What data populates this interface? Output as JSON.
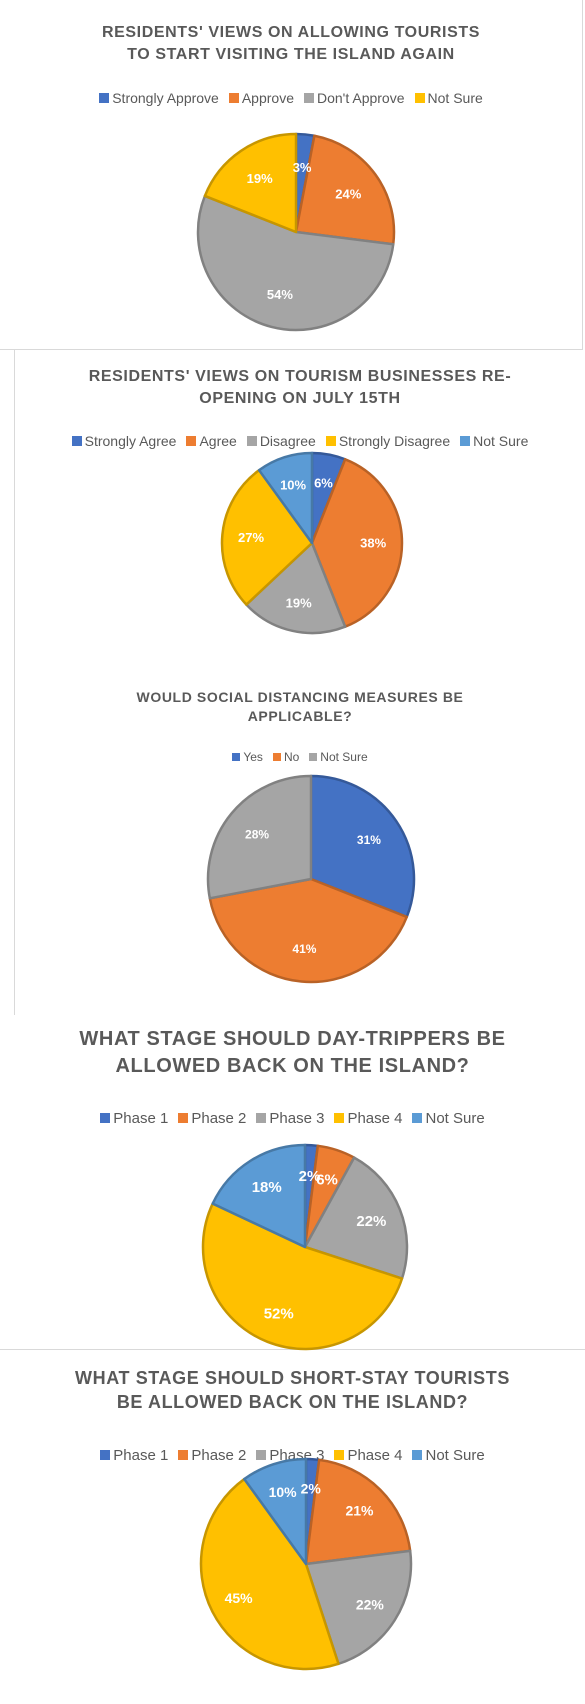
{
  "chart_data": [
    {
      "type": "pie",
      "title": "RESIDENTS' VIEWS ON ALLOWING TOURISTS TO START VISITING THE ISLAND AGAIN",
      "categories": [
        "Strongly Approve",
        "Approve",
        "Don't Approve",
        "Not Sure"
      ],
      "values": [
        3,
        24,
        54,
        19
      ],
      "labels": [
        "3%",
        "24%",
        "54%",
        "19%"
      ],
      "colors": [
        "#4472c4",
        "#ed7d31",
        "#a5a5a5",
        "#ffc000"
      ],
      "legend": "top"
    },
    {
      "type": "pie",
      "title": "RESIDENTS' VIEWS ON TOURISM BUSINESSES RE-OPENING ON JULY 15TH",
      "categories": [
        "Strongly Agree",
        "Agree",
        "Disagree",
        "Strongly Disagree",
        "Not Sure"
      ],
      "values": [
        6,
        38,
        19,
        27,
        10
      ],
      "labels": [
        "6%",
        "38%",
        "19%",
        "27%",
        "10%"
      ],
      "colors": [
        "#4472c4",
        "#ed7d31",
        "#a5a5a5",
        "#ffc000",
        "#5b9bd5"
      ],
      "legend": "top"
    },
    {
      "type": "pie",
      "title": "WOULD SOCIAL DISTANCING MEASURES BE APPLICABLE?",
      "categories": [
        "Yes",
        "No",
        "Not Sure"
      ],
      "values": [
        31,
        41,
        28
      ],
      "labels": [
        "31%",
        "41%",
        "28%"
      ],
      "colors": [
        "#4472c4",
        "#ed7d31",
        "#a5a5a5"
      ],
      "legend": "top"
    },
    {
      "type": "pie",
      "title": "WHAT STAGE SHOULD DAY-TRIPPERS BE ALLOWED BACK ON THE ISLAND?",
      "categories": [
        "Phase 1",
        "Phase 2",
        "Phase 3",
        "Phase 4",
        "Not Sure"
      ],
      "values": [
        2,
        6,
        22,
        52,
        18
      ],
      "labels": [
        "2%",
        "6%",
        "22%",
        "52%",
        "18%"
      ],
      "colors": [
        "#4472c4",
        "#ed7d31",
        "#a5a5a5",
        "#ffc000",
        "#5b9bd5"
      ],
      "legend": "top"
    },
    {
      "type": "pie",
      "title": "WHAT STAGE SHOULD SHORT-STAY TOURISTS BE ALLOWED BACK ON THE ISLAND?",
      "categories": [
        "Phase 1",
        "Phase 2",
        "Phase 3",
        "Phase 4",
        "Not Sure"
      ],
      "values": [
        2,
        21,
        22,
        45,
        10
      ],
      "labels": [
        "2%",
        "21%",
        "22%",
        "45%",
        "10%"
      ],
      "colors": [
        "#4472c4",
        "#ed7d31",
        "#a5a5a5",
        "#ffc000",
        "#5b9bd5"
      ],
      "legend": "top"
    }
  ]
}
